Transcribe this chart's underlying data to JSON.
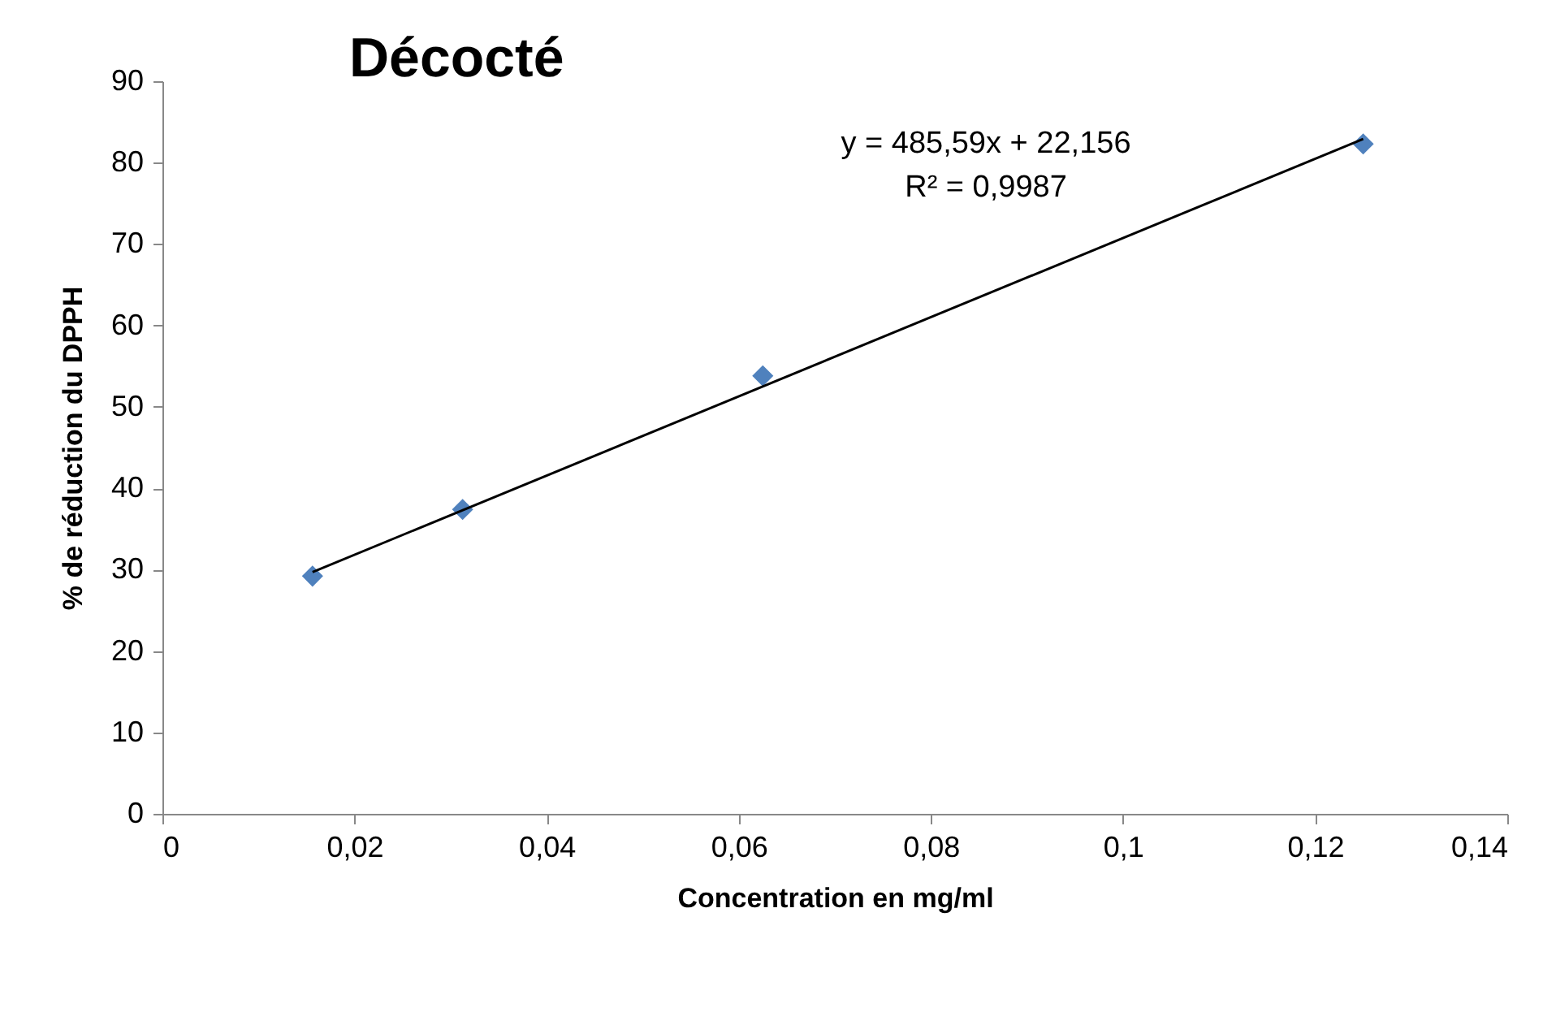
{
  "chart_data": {
    "type": "scatter",
    "title": "Décocté",
    "xlabel": "Concentration en mg/ml",
    "ylabel": "% de réduction du DPPH",
    "x": [
      0.015625,
      0.03125,
      0.0625,
      0.125
    ],
    "series": [
      {
        "color": "#4f81bd",
        "marker": "diamond",
        "values": [
          29.2,
          37.4,
          53.8,
          82.3
        ]
      },
      {
        "type": "line",
        "color": "#000000",
        "x": [
          0.015625,
          0.125
        ],
        "values": [
          29.7,
          82.9
        ],
        "marker": "none",
        "line_style": "solid"
      }
    ],
    "annotations": [
      "y = 485,59x + 22,156",
      "R² = 0,9987"
    ],
    "xlim": [
      0,
      0.14
    ],
    "ylim": [
      0,
      90
    ],
    "xticks": [
      0,
      {
        "value": 0.02,
        "label": "0,02"
      },
      {
        "value": 0.04,
        "label": "0,04"
      },
      {
        "value": 0.06,
        "label": "0,06"
      },
      {
        "value": 0.08,
        "label": "0,08"
      },
      {
        "value": 0.1,
        "label": "0,1"
      },
      {
        "value": 0.12,
        "label": "0,12"
      },
      {
        "value": 0.14,
        "label": "0,14"
      }
    ],
    "yticks": [
      0,
      10,
      20,
      30,
      40,
      50,
      60,
      70,
      80,
      90
    ],
    "grid": false
  }
}
